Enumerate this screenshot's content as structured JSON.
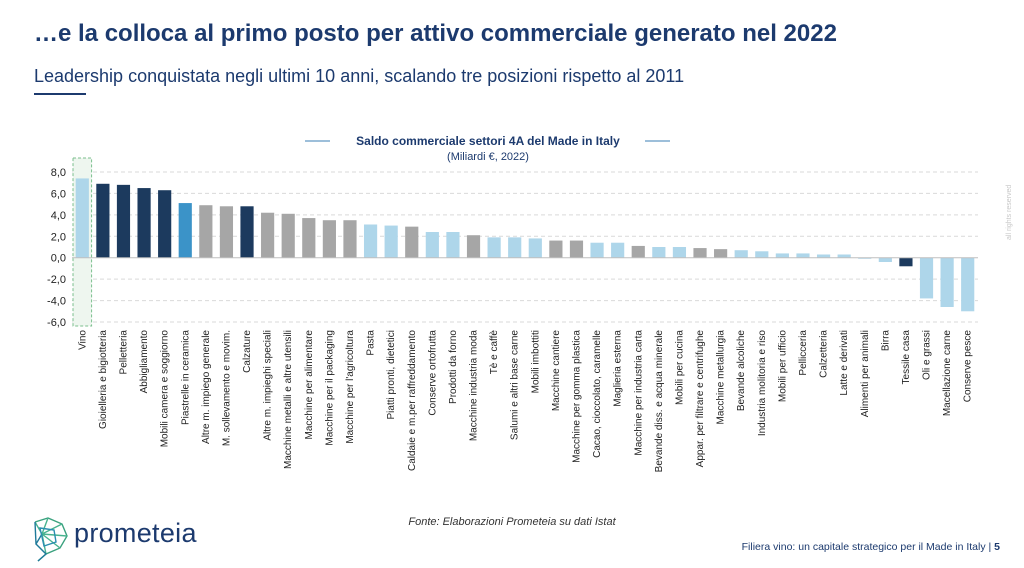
{
  "slide": {
    "title": "…e la colloca al primo posto per attivo commerciale generato nel 2022",
    "subtitle": "Leadership conquistata negli ultimi 10 anni, scalando tre posizioni rispetto al 2011",
    "source": "Fonte: Elaborazioni Prometeia su dati Istat",
    "brand": "prometeia",
    "footer_text": "Filiera vino: un capitale strategico per il Made in Italy | ",
    "page_number": "5",
    "rights": "all rights reserved"
  },
  "colors": {
    "dark": "#1c3a5e",
    "mid": "#3b93c8",
    "grey": "#a6a6a6",
    "light": "#aed6ea",
    "text": "#1c3a6e"
  },
  "chart_data": {
    "type": "bar",
    "title": "Saldo commerciale settori 4A del Made in Italy",
    "subtitle": "(Miliardi €, 2022)",
    "ylim": [
      -6,
      8
    ],
    "yticks": [
      "8,0",
      "6,0",
      "4,0",
      "2,0",
      "0,0",
      "-2,0",
      "-4,0",
      "-6,0"
    ],
    "grid": true,
    "highlighted_category": "Vino",
    "categories": [
      "Vino",
      "Gioielleria e bigiotteria",
      "Pelletteria",
      "Abbigliamento",
      "Mobili camera e soggiorno",
      "Piastrelle in ceramica",
      "Altre m. impiego generale",
      "M. sollevamento e movim.",
      "Calzature",
      "Altre m. impieghi speciali",
      "Macchine metalli e altre utensili",
      "Macchine per alimentare",
      "Macchine per il packaging",
      "Macchine per l'agricoltura",
      "Pasta",
      "Piatti pronti, dietetici",
      "Caldaie e m.per raffreddamento",
      "Conserve ortofrutta",
      "Prodotti da forno",
      "Macchine industria moda",
      "Tè e caffè",
      "Salumi e altri base carne",
      "Mobili imbottiti",
      "Macchine cantiere",
      "Macchine per gomma plastica",
      "Cacao, cioccolato, caramelle",
      "Maglieria esterna",
      "Macchine per industria carta",
      "Bevande diss. e acqua minerale",
      "Mobili per cucina",
      "Appar. per filtrare e centrifughe",
      "Macchine metallurgia",
      "Bevande alcoliche",
      "Industria molitoria e riso",
      "Mobili per ufficio",
      "Pellicceria",
      "Calzetteria",
      "Latte e derivati",
      "Alimenti per animali",
      "Birra",
      "Tessile casa",
      "Oli e grassi",
      "Macellazione carne",
      "Conserve pesce"
    ],
    "values": [
      7.4,
      6.9,
      6.8,
      6.5,
      6.3,
      5.1,
      4.9,
      4.8,
      4.8,
      4.2,
      4.1,
      3.7,
      3.5,
      3.5,
      3.1,
      3.0,
      2.9,
      2.4,
      2.4,
      2.1,
      1.9,
      1.9,
      1.8,
      1.6,
      1.6,
      1.4,
      1.4,
      1.1,
      1.0,
      1.0,
      0.9,
      0.8,
      0.7,
      0.6,
      0.4,
      0.4,
      0.3,
      0.3,
      -0.1,
      -0.4,
      -0.8,
      -3.8,
      -4.6,
      -5.0
    ],
    "color_groups": [
      "light",
      "dark",
      "dark",
      "dark",
      "dark",
      "mid",
      "grey",
      "grey",
      "dark",
      "grey",
      "grey",
      "grey",
      "grey",
      "grey",
      "light",
      "light",
      "grey",
      "light",
      "light",
      "grey",
      "light",
      "light",
      "light",
      "grey",
      "grey",
      "light",
      "light",
      "grey",
      "light",
      "light",
      "grey",
      "grey",
      "light",
      "light",
      "light",
      "light",
      "light",
      "light",
      "light",
      "light",
      "dark",
      "light",
      "light",
      "light"
    ]
  }
}
